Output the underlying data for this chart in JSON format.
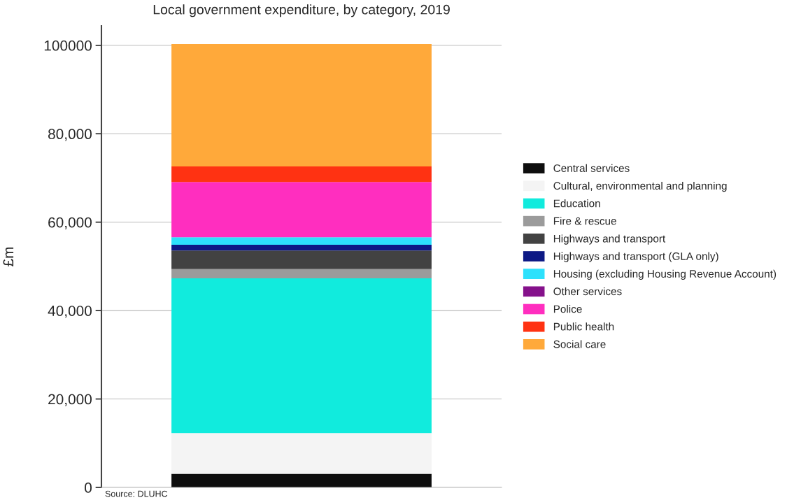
{
  "chart_data": {
    "type": "bar",
    "stacked": true,
    "title": "Local government expenditure, by category, 2019",
    "ylabel": "£m",
    "categories": [
      null
    ],
    "series": [
      {
        "name": "Central services",
        "color": "#0e0e0e",
        "values": [
          3100
        ]
      },
      {
        "name": "Cultural, environmental and planning",
        "color": "#f4f4f4",
        "values": [
          9200
        ]
      },
      {
        "name": "Education",
        "color": "#11ebdd",
        "values": [
          35000
        ]
      },
      {
        "name": "Fire & rescue",
        "color": "#9b9b9b",
        "values": [
          2100
        ]
      },
      {
        "name": "Highways and transport",
        "color": "#424242",
        "values": [
          4200
        ]
      },
      {
        "name": "Highways and transport (GLA only)",
        "color": "#0d1985",
        "values": [
          1300
        ]
      },
      {
        "name": "Housing (excluding Housing Revenue Account)",
        "color": "#2de1fc",
        "values": [
          1700
        ]
      },
      {
        "name": "Other services",
        "color": "#85118b",
        "values": [
          null
        ]
      },
      {
        "name": "Police",
        "color": "#ff2ebf",
        "values": [
          12500
        ]
      },
      {
        "name": "Public health",
        "color": "#ff3212",
        "values": [
          3500
        ]
      },
      {
        "name": "Social care",
        "color": "#ffa93a",
        "values": [
          27700
        ]
      }
    ],
    "ylim": [
      0,
      104400
    ],
    "yticks": [
      0,
      {
        "value": 20000,
        "label": "20,000"
      },
      {
        "value": 40000,
        "label": "40,000"
      },
      {
        "value": 60000,
        "label": "60,000"
      },
      {
        "value": 80000,
        "label": "80,000"
      },
      100000
    ],
    "grid": "y",
    "legend": "right",
    "annotations": [
      "Source: DLUHC"
    ]
  }
}
